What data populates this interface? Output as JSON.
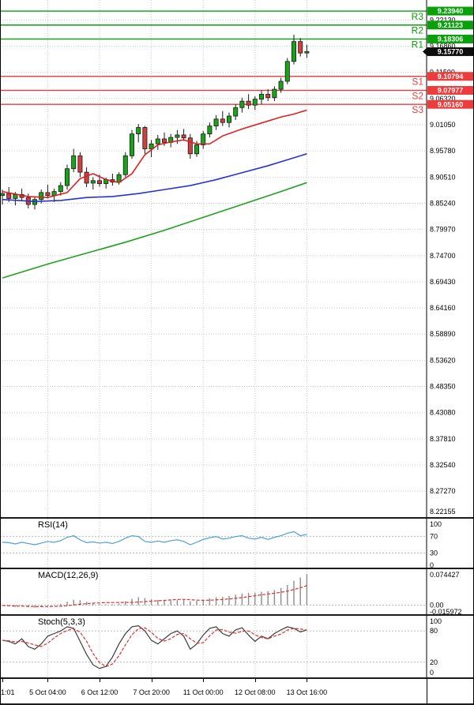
{
  "colors": {
    "background": "#FFFFFF",
    "grid": "#CCCCCC",
    "resistance": "#0AA00A",
    "support": "#EE3B3B",
    "bull": "#18A418",
    "bear": "#D04040",
    "wick": "#1A1A1A",
    "ma_fast": "#E02020",
    "ma_mid": "#2433D6",
    "ma_slow": "#20A020",
    "rsi": "#4D9FDA",
    "macd_bar": "#8C8C8C",
    "signal": "#E03030",
    "stoch_k": "#3C3C3C",
    "current_badge": "#0D0D0D",
    "separator": "#1C1C1C"
  },
  "chart_data": {
    "type": "candlestick",
    "title": "",
    "ohlc": [
      [
        8.868,
        8.88,
        8.85,
        8.872
      ],
      [
        8.872,
        8.885,
        8.855,
        8.862
      ],
      [
        8.862,
        8.875,
        8.848,
        8.87
      ],
      [
        8.87,
        8.882,
        8.858,
        8.864
      ],
      [
        8.864,
        8.872,
        8.842,
        8.85
      ],
      [
        8.85,
        8.866,
        8.84,
        8.86
      ],
      [
        8.86,
        8.88,
        8.852,
        8.874
      ],
      [
        8.874,
        8.89,
        8.862,
        8.868
      ],
      [
        8.868,
        8.882,
        8.855,
        8.876
      ],
      [
        8.876,
        8.895,
        8.868,
        8.888
      ],
      [
        8.888,
        8.93,
        8.88,
        8.922
      ],
      [
        8.922,
        8.962,
        8.915,
        8.948
      ],
      [
        8.948,
        8.955,
        8.905,
        8.915
      ],
      [
        8.915,
        8.925,
        8.885,
        8.893
      ],
      [
        8.893,
        8.905,
        8.88,
        8.898
      ],
      [
        8.898,
        8.91,
        8.886,
        8.892
      ],
      [
        8.892,
        8.904,
        8.882,
        8.9
      ],
      [
        8.9,
        8.912,
        8.888,
        8.895
      ],
      [
        8.895,
        8.915,
        8.89,
        8.91
      ],
      [
        8.91,
        8.955,
        8.905,
        8.948
      ],
      [
        8.948,
        9.0,
        8.942,
        8.992
      ],
      [
        8.992,
        9.012,
        8.975,
        9.005
      ],
      [
        9.005,
        9.008,
        8.952,
        8.962
      ],
      [
        8.962,
        8.98,
        8.945,
        8.972
      ],
      [
        8.972,
        8.99,
        8.96,
        8.982
      ],
      [
        8.982,
        8.995,
        8.968,
        8.975
      ],
      [
        8.975,
        8.992,
        8.965,
        8.985
      ],
      [
        8.985,
        9.0,
        8.972,
        8.99
      ],
      [
        8.99,
        9.002,
        8.978,
        8.984
      ],
      [
        8.984,
        8.992,
        8.942,
        8.952
      ],
      [
        8.952,
        8.978,
        8.946,
        8.97
      ],
      [
        8.97,
        8.998,
        8.962,
        8.992
      ],
      [
        8.992,
        9.015,
        8.985,
        9.008
      ],
      [
        9.008,
        9.03,
        9.0,
        9.022
      ],
      [
        9.022,
        9.038,
        9.008,
        9.015
      ],
      [
        9.015,
        9.035,
        9.005,
        9.028
      ],
      [
        9.028,
        9.052,
        9.02,
        9.045
      ],
      [
        9.045,
        9.065,
        9.035,
        9.058
      ],
      [
        9.058,
        9.072,
        9.042,
        9.05
      ],
      [
        9.05,
        9.068,
        9.04,
        9.062
      ],
      [
        9.062,
        9.08,
        9.052,
        9.072
      ],
      [
        9.072,
        9.082,
        9.058,
        9.065
      ],
      [
        9.065,
        9.088,
        9.058,
        9.082
      ],
      [
        9.082,
        9.105,
        9.075,
        9.098
      ],
      [
        9.098,
        9.145,
        9.092,
        9.138
      ],
      [
        9.138,
        9.192,
        9.132,
        9.178
      ],
      [
        9.178,
        9.185,
        9.148,
        9.155
      ],
      [
        9.155,
        9.172,
        9.145,
        9.158
      ]
    ],
    "x_labels": [
      {
        "bar": 0,
        "label": "1:01"
      },
      {
        "bar": 7,
        "label": "5 Oct 04:00"
      },
      {
        "bar": 15,
        "label": "6 Oct 12:00"
      },
      {
        "bar": 23,
        "label": "7 Oct 20:00"
      },
      {
        "bar": 31,
        "label": "11 Oct 00:00"
      },
      {
        "bar": 39,
        "label": "12 Oct 08:00"
      },
      {
        "bar": 47,
        "label": "13 Oct 16:00"
      }
    ],
    "price_axis": {
      "ylim": [
        8.2205,
        9.2617
      ],
      "current_price": "9.15770",
      "ticks": [
        "9.22130",
        "9.16860",
        "9.11590",
        "9.06320",
        "9.01050",
        "8.95780",
        "8.90510",
        "8.85240",
        "8.79970",
        "8.74700",
        "8.69430",
        "8.64160",
        "8.58890",
        "8.53620",
        "8.48350",
        "8.43080",
        "8.37810",
        "8.32540",
        "8.27270",
        "8.22155"
      ]
    },
    "levels": [
      {
        "name": "R3",
        "type": "resistance",
        "price": 9.2394,
        "price_label": "9.23940"
      },
      {
        "name": "R2",
        "type": "resistance",
        "price": 9.21123,
        "price_label": "9.21123"
      },
      {
        "name": "R1",
        "type": "resistance",
        "price": 9.18306,
        "price_label": "9.18306"
      },
      {
        "name": "S1",
        "type": "support",
        "price": 9.10794,
        "price_label": "9.10794"
      },
      {
        "name": "S2",
        "type": "support",
        "price": 9.07977,
        "price_label": "9.07977"
      },
      {
        "name": "S3",
        "type": "support",
        "price": 9.0516,
        "price_label": "9.05160"
      }
    ],
    "moving_averages": [
      {
        "name": "fast",
        "color_key": "ma_fast",
        "points": [
          [
            0,
            8.876
          ],
          [
            4,
            8.866
          ],
          [
            7,
            8.864
          ],
          [
            10,
            8.874
          ],
          [
            12,
            8.902
          ],
          [
            14,
            8.912
          ],
          [
            16,
            8.9
          ],
          [
            18,
            8.894
          ],
          [
            20,
            8.912
          ],
          [
            22,
            8.95
          ],
          [
            24,
            8.97
          ],
          [
            26,
            8.976
          ],
          [
            28,
            8.98
          ],
          [
            30,
            8.972
          ],
          [
            32,
            8.972
          ],
          [
            34,
            8.988
          ],
          [
            37,
            9.002
          ],
          [
            40,
            9.014
          ],
          [
            43,
            9.026
          ],
          [
            45,
            9.032
          ],
          [
            47,
            9.04
          ]
        ]
      },
      {
        "name": "medium",
        "color_key": "ma_mid",
        "points": [
          [
            0,
            8.86
          ],
          [
            5,
            8.856
          ],
          [
            9,
            8.858
          ],
          [
            13,
            8.864
          ],
          [
            17,
            8.866
          ],
          [
            21,
            8.872
          ],
          [
            25,
            8.88
          ],
          [
            29,
            8.888
          ],
          [
            33,
            8.9
          ],
          [
            37,
            8.914
          ],
          [
            41,
            8.928
          ],
          [
            44,
            8.94
          ],
          [
            47,
            8.952
          ]
        ]
      },
      {
        "name": "slow",
        "color_key": "ma_slow",
        "points": [
          [
            0,
            8.702
          ],
          [
            7,
            8.73
          ],
          [
            13,
            8.752
          ],
          [
            19,
            8.774
          ],
          [
            25,
            8.798
          ],
          [
            31,
            8.824
          ],
          [
            37,
            8.85
          ],
          [
            43,
            8.876
          ],
          [
            47,
            8.894
          ]
        ]
      }
    ],
    "indicators": [
      {
        "id": "rsi",
        "label": "RSI(14)",
        "ylim": [
          -5.77,
          113.46
        ],
        "axis": [
          {
            "v": 100,
            "label": "100",
            "line": false
          },
          {
            "v": 70,
            "label": "70",
            "line": true
          },
          {
            "v": 30,
            "label": "30",
            "line": true
          },
          {
            "v": 0,
            "label": "0",
            "line": false
          }
        ],
        "values": [
          56,
          55,
          52,
          56,
          53,
          50,
          54,
          58,
          56,
          60,
          68,
          72,
          62,
          55,
          57,
          54,
          56,
          53,
          58,
          66,
          72,
          70,
          58,
          56,
          59,
          56,
          60,
          62,
          58,
          50,
          56,
          63,
          67,
          70,
          64,
          66,
          70,
          72,
          66,
          64,
          68,
          63,
          68,
          72,
          78,
          82,
          72,
          75
        ]
      },
      {
        "id": "macd",
        "label": "MACD(12,26,9)",
        "ylim": [
          -0.02166,
          0.08572
        ],
        "axis": [
          {
            "v": 0.074427,
            "label": "0.074427",
            "line": false
          },
          {
            "v": 0,
            "label": "0.00",
            "line": true
          },
          {
            "v": -0.015972,
            "label": "-0.015972",
            "line": false
          }
        ],
        "histogram": [
          -0.001,
          -0.002,
          -0.004,
          -0.003,
          -0.005,
          -0.006,
          -0.004,
          -0.002,
          0.0,
          0.003,
          0.008,
          0.013,
          0.012,
          0.008,
          0.005,
          0.003,
          0.002,
          0.002,
          0.004,
          0.009,
          0.015,
          0.019,
          0.017,
          0.014,
          0.012,
          0.011,
          0.011,
          0.012,
          0.012,
          0.009,
          0.01,
          0.013,
          0.016,
          0.019,
          0.02,
          0.022,
          0.025,
          0.028,
          0.029,
          0.03,
          0.032,
          0.033,
          0.036,
          0.041,
          0.048,
          0.058,
          0.066,
          0.074
        ]
      },
      {
        "id": "stoch",
        "label": "Stoch(5,3,3)",
        "ylim": [
          -9.09,
          109.09
        ],
        "axis": [
          {
            "v": 100,
            "label": "100",
            "line": false
          },
          {
            "v": 80,
            "label": "80",
            "line": true
          },
          {
            "v": 20,
            "label": "20",
            "line": true
          },
          {
            "v": 0,
            "label": "0",
            "line": false
          }
        ],
        "k_values": [
          62,
          60,
          55,
          65,
          50,
          45,
          55,
          70,
          75,
          80,
          88,
          85,
          60,
          35,
          15,
          8,
          12,
          30,
          55,
          75,
          88,
          90,
          80,
          62,
          55,
          65,
          75,
          80,
          70,
          45,
          55,
          72,
          85,
          88,
          75,
          70,
          82,
          86,
          72,
          60,
          70,
          65,
          75,
          82,
          88,
          85,
          78,
          82
        ]
      }
    ]
  }
}
